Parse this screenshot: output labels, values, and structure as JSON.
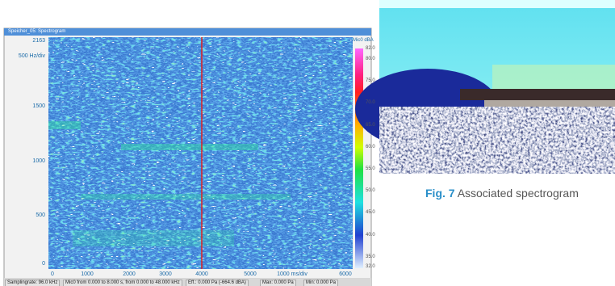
{
  "window": {
    "title": "Speicher_05: Spectrogram",
    "y_axis": [
      "2163",
      "500 Hz/div",
      "1500",
      "1000",
      "500",
      "0"
    ],
    "x_axis": [
      "0",
      "1000",
      "2000",
      "3000",
      "4000",
      "5000",
      "1000 ms/div",
      "6000"
    ],
    "colorbar": {
      "title": "Mic0 dBA",
      "ticks": [
        "82.0",
        "80.0",
        "75.0",
        "70.0",
        "65.0",
        "60.0",
        "55.0",
        "50.0",
        "45.0",
        "40.0",
        "35.0",
        "32.0"
      ]
    },
    "status_bar": [
      "Samplingrate: 96.0 kHz",
      "Mic0 from 0.000 to 8.000 s, from 0.000 to 48.000 kHz",
      "Eff.: 0.000 Pa (-664.6 dBA)",
      "Max: 0.000 Pa",
      "Min: 0.000 Pa"
    ]
  },
  "caption": {
    "label": "Fig. 7",
    "text": "Associated spectrogram"
  }
}
